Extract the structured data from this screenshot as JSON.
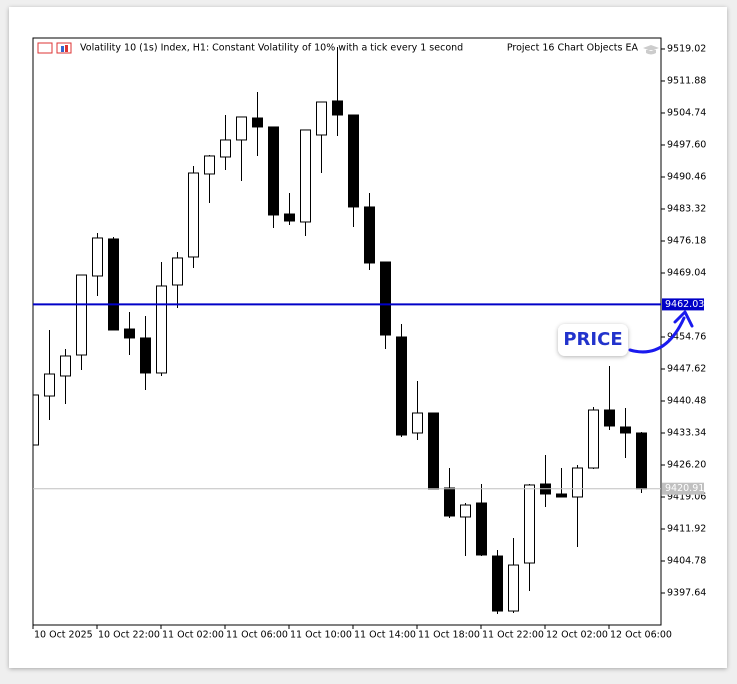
{
  "chart_data": {
    "type": "candlestick",
    "title": "Volatility 10 (1s) Index, H1:  Constant Volatility of 10% with a tick every 1 second",
    "expert_name": "Project 16 Chart Objects EA",
    "annotation": "PRICE",
    "categories": [
      "10 Oct 2025",
      null,
      null,
      null,
      "10 Oct 22:00",
      null,
      null,
      null,
      "11 Oct 02:00",
      null,
      null,
      null,
      "11 Oct 06:00",
      null,
      null,
      null,
      "11 Oct 10:00",
      null,
      null,
      null,
      "11 Oct 14:00",
      null,
      null,
      null,
      "11 Oct 18:00",
      null,
      null,
      null,
      "11 Oct 22:00",
      null,
      null,
      null,
      "12 Oct 02:00",
      null,
      null,
      null,
      "12 Oct 06:00",
      null,
      null
    ],
    "open": [
      9430.66,
      9441.59,
      9446.06,
      9450.74,
      9468.37,
      9476.63,
      9456.54,
      9454.54,
      9446.73,
      9466.36,
      9472.61,
      9491.13,
      9494.92,
      9498.72,
      9503.62,
      9501.62,
      9482.2,
      9480.42,
      9499.83,
      9507.42,
      9504.29,
      9483.77,
      9471.49,
      9454.76,
      9433.34,
      9437.8,
      9421.07,
      9414.6,
      9417.72,
      9405.89,
      9393.62,
      9404.33,
      9421.96,
      9419.73,
      9419.06,
      9425.53,
      9438.47,
      9434.68,
      9433.34
    ],
    "high": [
      9441.82,
      9456.32,
      9452.08,
      9468.59,
      9477.96,
      9477.07,
      9460.34,
      9459.44,
      9471.49,
      9473.72,
      9492.91,
      9495.37,
      9504.29,
      9503.85,
      9509.43,
      9501.62,
      9486.89,
      9500.95,
      9507.19,
      9519.47,
      9504.29,
      9486.89,
      9471.49,
      9457.66,
      9444.94,
      9437.8,
      9425.53,
      9417.72,
      9421.96,
      9407.23,
      9409.91,
      9421.96,
      9428.43,
      9425.53,
      9426.2,
      9439.14,
      9448.29,
      9438.92,
      9433.56
    ],
    "low": [
      9430.66,
      9436.24,
      9439.81,
      9447.4,
      9463.91,
      9456.32,
      9450.74,
      9442.93,
      9446.06,
      9461.23,
      9470.15,
      9484.66,
      9492.02,
      9489.57,
      9495.15,
      9479.08,
      9479.75,
      9477.29,
      9491.35,
      9499.61,
      9479.3,
      9469.71,
      9452.08,
      9432.45,
      9431.78,
      9420.84,
      9414.37,
      9405.89,
      9405.89,
      9392.95,
      9393.17,
      9398.08,
      9416.83,
      9419.06,
      9407.9,
      9425.31,
      9434.01,
      9427.76,
      9419.95
    ],
    "close": [
      9441.82,
      9446.5,
      9450.52,
      9468.59,
      9476.85,
      9456.32,
      9454.54,
      9446.73,
      9466.14,
      9472.39,
      9491.35,
      9495.15,
      9498.72,
      9503.85,
      9501.62,
      9481.98,
      9480.64,
      9500.95,
      9507.19,
      9504.29,
      9483.77,
      9471.27,
      9455.2,
      9432.89,
      9437.8,
      9420.84,
      9414.82,
      9417.27,
      9406.12,
      9393.62,
      9403.88,
      9421.74,
      9419.73,
      9419.06,
      9425.53,
      9438.47,
      9434.9,
      9433.34,
      9420.91
    ],
    "up_color": "#ffffff",
    "down_color": "#000000",
    "ylim": [
      9390.5,
      9521.47
    ],
    "yticks": [
      9519.02,
      9511.88,
      9504.74,
      {
        "value": 9497.6,
        "label": "9497.60"
      },
      9490.46,
      9483.32,
      9476.18,
      9469.04,
      9454.76,
      9447.62,
      9440.48,
      9433.34,
      {
        "value": 9426.2,
        "label": "9426.20"
      },
      9419.06,
      9411.92,
      9404.78,
      9397.64
    ],
    "price_line": {
      "value": 9462.03,
      "color": "#0000c8"
    },
    "bid_line": {
      "value": 9420.91,
      "color": "#c0c0c0"
    }
  }
}
